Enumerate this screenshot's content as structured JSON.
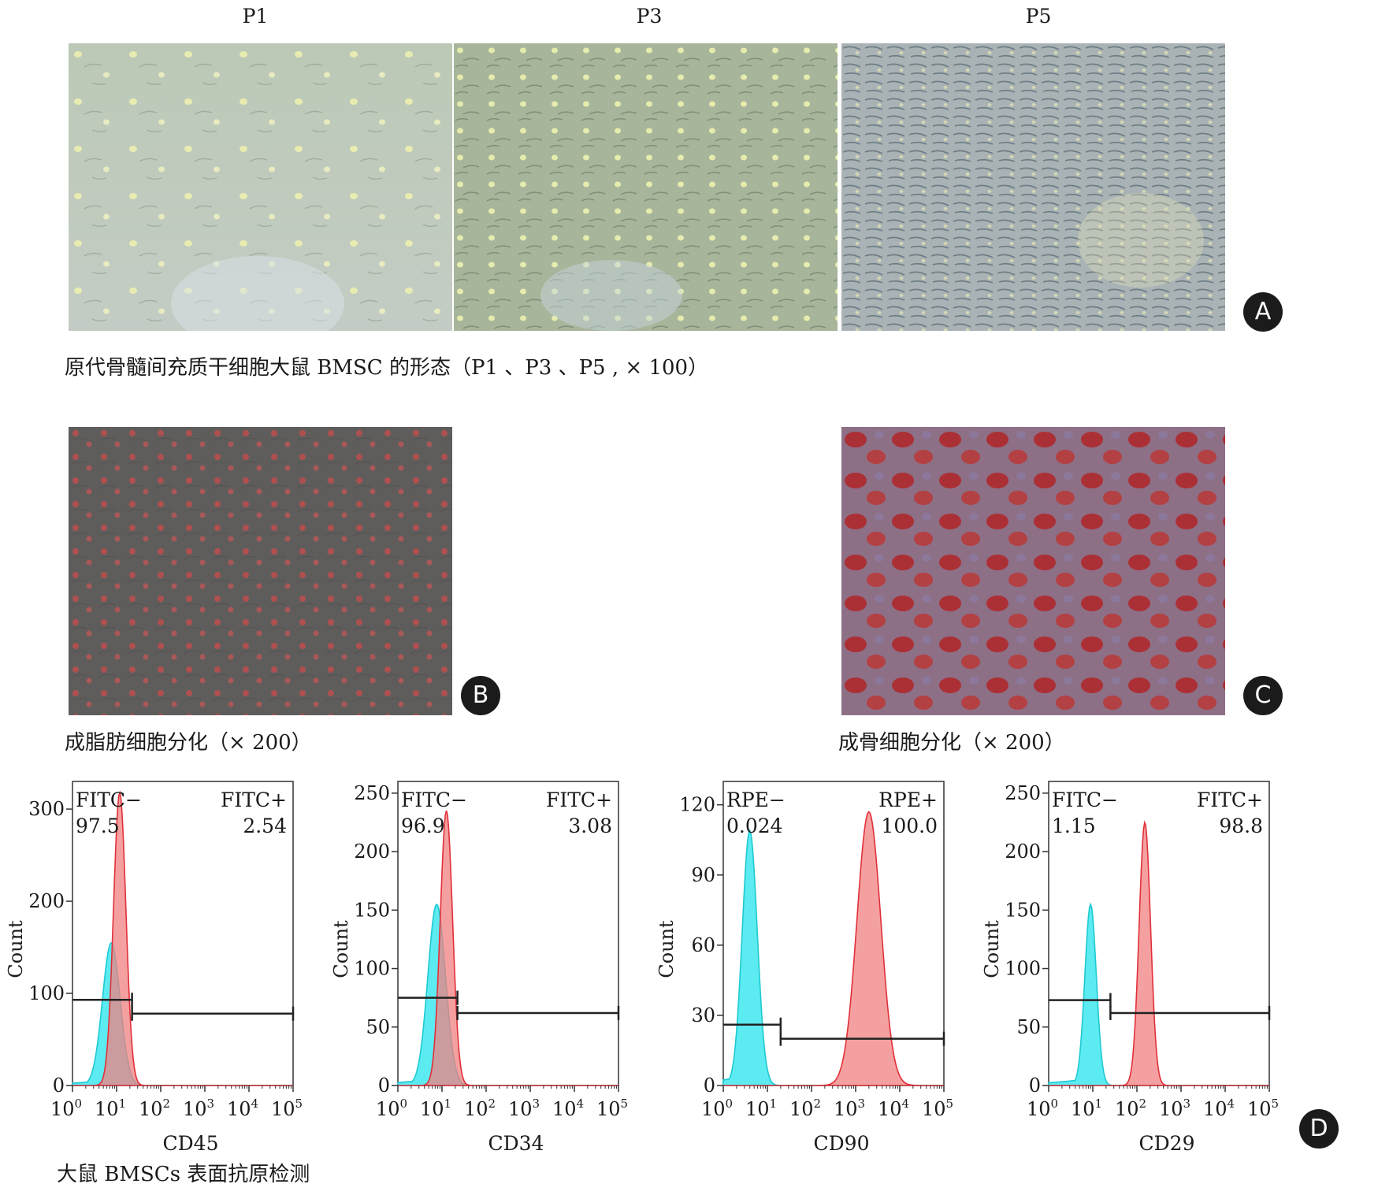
{
  "panel_a": {
    "badge": "A",
    "columns": [
      "P1",
      "P3",
      "P5"
    ],
    "caption": "原代骨髓间充质干细胞大鼠 BMSC 的形态（P1 、P3 、P5 , × 100）"
  },
  "panel_b": {
    "badge": "B",
    "caption": "成脂肪细胞分化（× 200）"
  },
  "panel_c": {
    "badge": "C",
    "caption": "成骨细胞分化（× 200）"
  },
  "panel_d": {
    "badge": "D",
    "caption": "大鼠 BMSCs 表面抗原检测"
  },
  "colors": {
    "control_fill": "#3fe7ee",
    "marker_fill": "#f28080",
    "marker_line": "#e0303a"
  },
  "chart_data": [
    {
      "type": "area",
      "xlabel": "CD45",
      "ylabel": "Count",
      "x_scale": "log",
      "xlim_exponent": [
        0,
        5
      ],
      "xticks": [
        "10^0",
        "10^1",
        "10^2",
        "10^3",
        "10^4",
        "10^5"
      ],
      "ylim": [
        0,
        330
      ],
      "yticks": [
        0,
        100,
        200,
        300
      ],
      "gate_left": {
        "label": "FITC−",
        "value": "97.5"
      },
      "gate_right": {
        "label": "FITC+",
        "value": "2.54"
      },
      "gate_split_log": 1.35,
      "gate_left_y": 93,
      "gate_right_y": 78,
      "series": [
        {
          "role": "control",
          "peak_log": 0.88,
          "peak_count": 155,
          "width": 0.2
        },
        {
          "role": "marker",
          "peak_log": 1.07,
          "peak_count": 318,
          "width": 0.14
        }
      ]
    },
    {
      "type": "area",
      "xlabel": "CD34",
      "ylabel": "Count",
      "x_scale": "log",
      "xlim_exponent": [
        0,
        5
      ],
      "xticks": [
        "10^0",
        "10^1",
        "10^2",
        "10^3",
        "10^4",
        "10^5"
      ],
      "ylim": [
        0,
        260
      ],
      "yticks": [
        0,
        50,
        100,
        150,
        200,
        250
      ],
      "gate_left": {
        "label": "FITC−",
        "value": "96.9"
      },
      "gate_right": {
        "label": "FITC+",
        "value": "3.08"
      },
      "gate_split_log": 1.35,
      "gate_left_y": 75,
      "gate_right_y": 62,
      "series": [
        {
          "role": "control",
          "peak_log": 0.88,
          "peak_count": 155,
          "width": 0.2
        },
        {
          "role": "marker",
          "peak_log": 1.1,
          "peak_count": 235,
          "width": 0.14
        }
      ]
    },
    {
      "type": "area",
      "xlabel": "CD90",
      "ylabel": "Count",
      "x_scale": "log",
      "xlim_exponent": [
        0,
        5
      ],
      "xticks": [
        "10^0",
        "10^1",
        "10^2",
        "10^3",
        "10^4",
        "10^5"
      ],
      "ylim": [
        0,
        130
      ],
      "yticks": [
        0,
        30,
        60,
        90,
        120
      ],
      "gate_left": {
        "label": "RPE−",
        "value": "0.024"
      },
      "gate_right": {
        "label": "RPE+",
        "value": "100.0"
      },
      "gate_split_log": 1.3,
      "gate_left_y": 26,
      "gate_right_y": 20,
      "series": [
        {
          "role": "control",
          "peak_log": 0.6,
          "peak_count": 109,
          "width": 0.17
        },
        {
          "role": "marker",
          "peak_log": 3.3,
          "peak_count": 117,
          "width": 0.27
        }
      ]
    },
    {
      "type": "area",
      "xlabel": "CD29",
      "ylabel": "Count",
      "x_scale": "log",
      "xlim_exponent": [
        0,
        5
      ],
      "xticks": [
        "10^0",
        "10^1",
        "10^2",
        "10^3",
        "10^4",
        "10^5"
      ],
      "ylim": [
        0,
        260
      ],
      "yticks": [
        0,
        50,
        100,
        150,
        200,
        250
      ],
      "gate_left": {
        "label": "FITC−",
        "value": "1.15"
      },
      "gate_right": {
        "label": "FITC+",
        "value": "98.8"
      },
      "gate_split_log": 1.4,
      "gate_left_y": 73,
      "gate_right_y": 62,
      "series": [
        {
          "role": "control",
          "peak_log": 0.95,
          "peak_count": 155,
          "width": 0.13
        },
        {
          "role": "marker",
          "peak_log": 2.18,
          "peak_count": 225,
          "width": 0.13
        }
      ]
    }
  ]
}
